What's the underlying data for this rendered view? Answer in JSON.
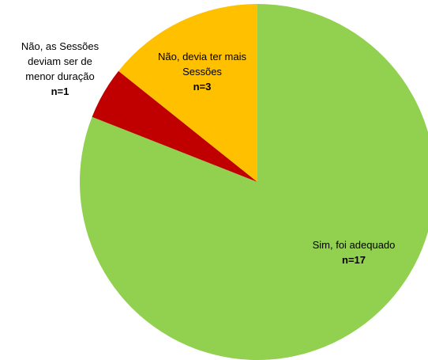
{
  "chart_data": {
    "type": "pie",
    "categories": [
      "Sim, foi adequado",
      "Não, as Sessões deviam ser de menor duração",
      "Não, devia ter mais Sessões"
    ],
    "values": [
      17,
      1,
      3
    ],
    "value_labels": [
      "n=17",
      "n=1",
      "n=3"
    ],
    "colors": [
      "#92d050",
      "#c00000",
      "#ffc000"
    ]
  }
}
